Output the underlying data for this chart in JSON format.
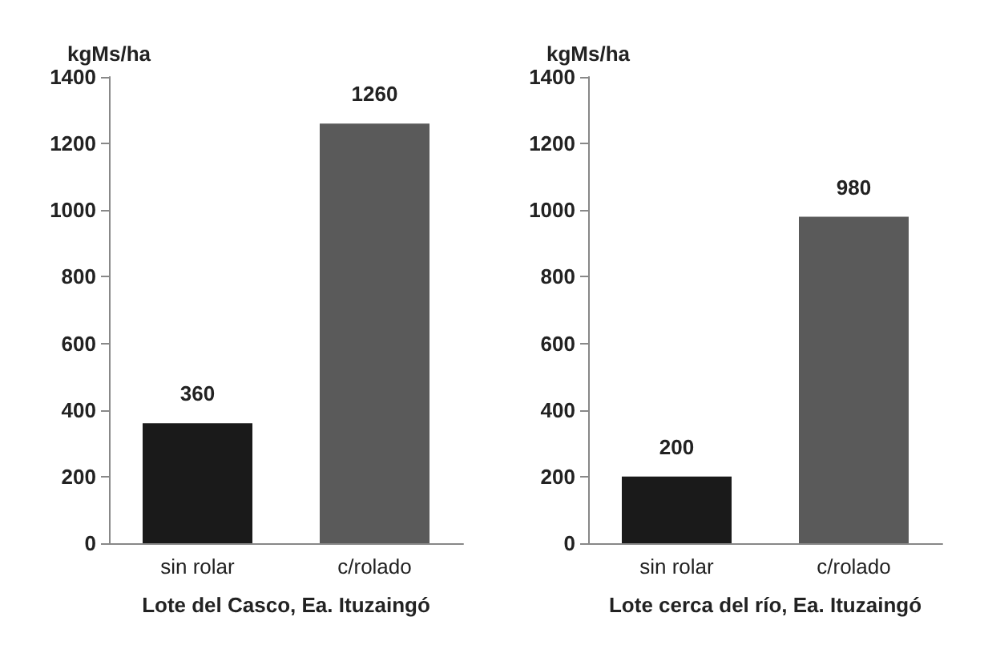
{
  "chart_data": [
    {
      "type": "bar",
      "ylabel": "kgMs/ha",
      "xlabel": "Lote del Casco, Ea. Ituzaingó",
      "categories": [
        "sin rolar",
        "c/rolado"
      ],
      "values": [
        360,
        1260
      ],
      "colors": [
        "#1a1a1a",
        "#5a5a5a"
      ],
      "ylim": [
        0,
        1400
      ],
      "yticks": [
        0,
        200,
        400,
        600,
        800,
        1000,
        1200,
        1400
      ],
      "grid": false,
      "data_labels": true
    },
    {
      "type": "bar",
      "ylabel": "kgMs/ha",
      "xlabel": "Lote cerca del río, Ea. Ituzaingó",
      "categories": [
        "sin rolar",
        "c/rolado"
      ],
      "values": [
        200,
        980
      ],
      "colors": [
        "#1a1a1a",
        "#5a5a5a"
      ],
      "ylim": [
        0,
        1400
      ],
      "yticks": [
        0,
        200,
        400,
        600,
        800,
        1000,
        1200,
        1400
      ],
      "grid": false,
      "data_labels": true
    }
  ]
}
